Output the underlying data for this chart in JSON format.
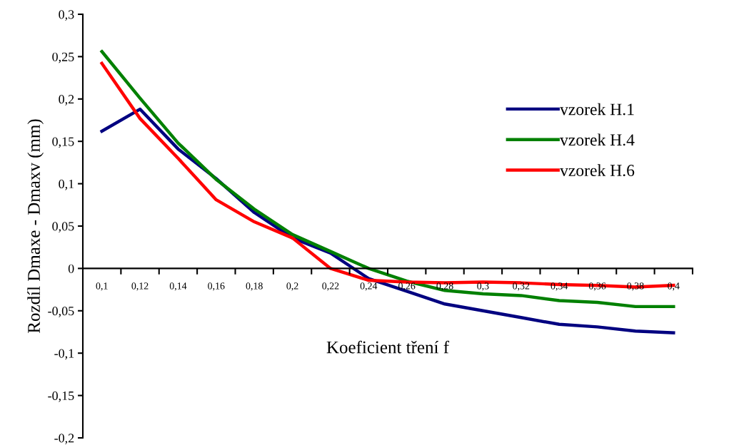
{
  "chart_data": {
    "type": "line",
    "xlabel": "Koeficient tření f",
    "ylabel": "Rozdíl Dmaxe - Dmaxv (mm)",
    "categories": [
      "0,1",
      "0,12",
      "0,14",
      "0,16",
      "0,18",
      "0,2",
      "0,22",
      "0,24",
      "0,26",
      "0,28",
      "0,3",
      "0,32",
      "0,34",
      "0,36",
      "0,38",
      "0,4"
    ],
    "series": [
      {
        "name": "vzorek H.1",
        "color": "#000080",
        "values": [
          0.162,
          0.188,
          0.141,
          0.106,
          0.066,
          0.036,
          0.018,
          -0.012,
          -0.027,
          -0.042,
          -0.05,
          -0.058,
          -0.066,
          -0.069,
          -0.074,
          -0.076
        ]
      },
      {
        "name": "vzorek H.4",
        "color": "#008000",
        "values": [
          0.256,
          0.201,
          0.148,
          0.105,
          0.07,
          0.04,
          0.02,
          0.0,
          -0.015,
          -0.026,
          -0.03,
          -0.032,
          -0.038,
          -0.04,
          -0.045,
          -0.045
        ]
      },
      {
        "name": "vzorek H.6",
        "color": "#ff0000",
        "values": [
          0.242,
          0.177,
          0.13,
          0.081,
          0.055,
          0.036,
          0.0,
          -0.014,
          -0.016,
          -0.017,
          -0.016,
          -0.017,
          -0.019,
          -0.02,
          -0.022,
          -0.02
        ]
      }
    ],
    "ylim": [
      -0.2,
      0.3
    ],
    "yticks": [
      {
        "value": -0.2,
        "label": "-0,2"
      },
      {
        "value": -0.15,
        "label": "-0,15"
      },
      {
        "value": -0.1,
        "label": "-0,1"
      },
      {
        "value": -0.05,
        "label": "-0,05"
      },
      {
        "value": 0,
        "label": "0"
      },
      {
        "value": 0.05,
        "label": "0,05"
      },
      {
        "value": 0.1,
        "label": "0,1"
      },
      {
        "value": 0.15,
        "label": "0,15"
      },
      {
        "value": 0.2,
        "label": "0,2"
      },
      {
        "value": 0.25,
        "label": "0,25"
      },
      {
        "value": 0.3,
        "label": "0,3"
      }
    ],
    "grid": false,
    "legend": "right",
    "marker": "none",
    "line_style": "solid"
  }
}
